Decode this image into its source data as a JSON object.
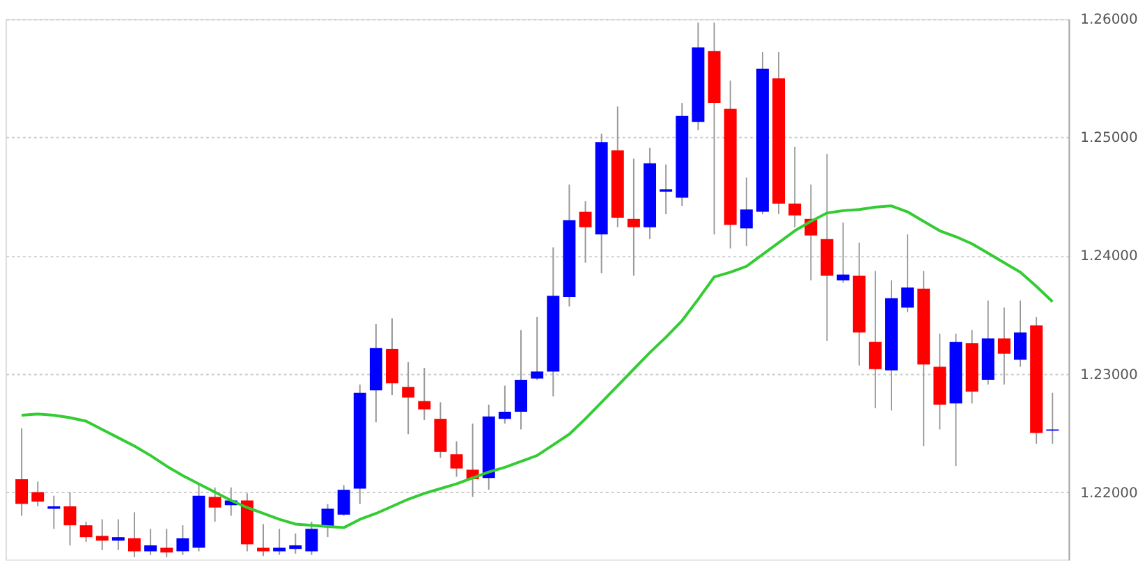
{
  "chart_data": {
    "type": "candlestick",
    "categories": [
      null,
      null,
      null,
      null,
      null,
      null,
      null,
      null,
      null,
      null,
      null,
      null,
      null,
      null,
      null,
      null,
      null,
      null,
      null,
      null,
      null,
      null,
      null,
      null,
      null,
      null,
      null,
      null,
      null,
      null,
      null,
      null,
      null,
      null,
      null,
      null,
      null,
      null,
      null,
      null,
      null,
      null,
      null,
      null,
      null,
      null,
      null,
      null,
      null,
      null,
      null,
      null,
      null,
      null,
      null,
      null,
      null,
      null,
      null,
      null,
      null,
      null,
      null,
      null,
      null
    ],
    "ohlc": [
      [
        1.2211,
        1.2254,
        1.218,
        1.219
      ],
      [
        1.22,
        1.2209,
        1.2188,
        1.2192
      ],
      [
        1.2186,
        1.2197,
        1.2169,
        1.2188
      ],
      [
        1.2188,
        1.22,
        1.2155,
        1.2172
      ],
      [
        1.2172,
        1.2175,
        1.2158,
        1.2162
      ],
      [
        1.2163,
        1.2177,
        1.2151,
        1.2159
      ],
      [
        1.2159,
        1.2177,
        1.2151,
        1.2162
      ],
      [
        1.2161,
        1.2183,
        1.2145,
        1.215
      ],
      [
        1.215,
        1.2169,
        1.2147,
        1.2155
      ],
      [
        1.2153,
        1.2169,
        1.2145,
        1.2149
      ],
      [
        1.215,
        1.2172,
        1.2147,
        1.2161
      ],
      [
        1.2153,
        1.2208,
        1.215,
        1.2197
      ],
      [
        1.2196,
        1.2204,
        1.2175,
        1.2187
      ],
      [
        1.2189,
        1.2204,
        1.218,
        1.2193
      ],
      [
        1.2193,
        1.2199,
        1.215,
        1.2156
      ],
      [
        1.2153,
        1.2173,
        1.2146,
        1.215
      ],
      [
        1.215,
        1.2169,
        1.2147,
        1.2153
      ],
      [
        1.2152,
        1.2165,
        1.2148,
        1.2155
      ],
      [
        1.215,
        1.2175,
        1.2147,
        1.2169
      ],
      [
        1.2171,
        1.219,
        1.2162,
        1.2186
      ],
      [
        1.2181,
        1.2206,
        1.218,
        1.2202
      ],
      [
        1.2203,
        1.2291,
        1.219,
        1.2284
      ],
      [
        1.2286,
        1.2342,
        1.2259,
        1.2322
      ],
      [
        1.2321,
        1.2347,
        1.2282,
        1.2292
      ],
      [
        1.2289,
        1.231,
        1.2249,
        1.228
      ],
      [
        1.2277,
        1.2305,
        1.2261,
        1.227
      ],
      [
        1.2262,
        1.2276,
        1.2229,
        1.2234
      ],
      [
        1.2232,
        1.2243,
        1.2213,
        1.222
      ],
      [
        1.2219,
        1.2258,
        1.2196,
        1.2211
      ],
      [
        1.2212,
        1.2274,
        1.2202,
        1.2264
      ],
      [
        1.2262,
        1.229,
        1.2258,
        1.2268
      ],
      [
        1.2268,
        1.2337,
        1.2253,
        1.2295
      ],
      [
        1.2296,
        1.2348,
        1.2295,
        1.2302
      ],
      [
        1.2302,
        1.2407,
        1.2281,
        1.2366
      ],
      [
        1.2365,
        1.246,
        1.2357,
        1.243
      ],
      [
        1.2437,
        1.2446,
        1.2394,
        1.2424
      ],
      [
        1.2418,
        1.2503,
        1.2385,
        1.2496
      ],
      [
        1.2489,
        1.2526,
        1.2424,
        1.2432
      ],
      [
        1.2431,
        1.2482,
        1.2383,
        1.2424
      ],
      [
        1.2424,
        1.2491,
        1.2414,
        1.2478
      ],
      [
        1.2454,
        1.2477,
        1.2435,
        1.2456
      ],
      [
        1.2449,
        1.2529,
        1.2442,
        1.2518
      ],
      [
        1.2513,
        1.2597,
        1.2506,
        1.2576
      ],
      [
        1.2573,
        1.2597,
        1.2418,
        1.2529
      ],
      [
        1.2524,
        1.2548,
        1.2406,
        1.2426
      ],
      [
        1.2423,
        1.2466,
        1.2408,
        1.2439
      ],
      [
        1.2437,
        1.2572,
        1.2435,
        1.2558
      ],
      [
        1.255,
        1.2572,
        1.2435,
        1.2444
      ],
      [
        1.2444,
        1.2492,
        1.2424,
        1.2434
      ],
      [
        1.2431,
        1.246,
        1.2379,
        1.2417
      ],
      [
        1.2414,
        1.2486,
        1.2328,
        1.2383
      ],
      [
        1.2379,
        1.2428,
        1.2377,
        1.2384
      ],
      [
        1.2383,
        1.2411,
        1.2307,
        1.2335
      ],
      [
        1.2327,
        1.2387,
        1.2271,
        1.2304
      ],
      [
        1.2303,
        1.2379,
        1.2269,
        1.2364
      ],
      [
        1.2356,
        1.2418,
        1.2352,
        1.2373
      ],
      [
        1.2372,
        1.2387,
        1.2239,
        1.2308
      ],
      [
        1.2306,
        1.2334,
        1.2253,
        1.2274
      ],
      [
        1.2275,
        1.2334,
        1.2222,
        1.2327
      ],
      [
        1.2326,
        1.2337,
        1.2275,
        1.2285
      ],
      [
        1.2295,
        1.2362,
        1.2291,
        1.233
      ],
      [
        1.233,
        1.2356,
        1.2291,
        1.2317
      ],
      [
        1.2312,
        1.2362,
        1.2306,
        1.2335
      ],
      [
        1.2341,
        1.2348,
        1.2241,
        1.225
      ],
      [
        1.2252,
        1.2284,
        1.2241,
        1.2253
      ]
    ],
    "colors": [
      "#ff0000",
      "#ff0000",
      "#0000ff",
      "#ff0000",
      "#ff0000",
      "#ff0000",
      "#0000ff",
      "#ff0000",
      "#0000ff",
      "#ff0000",
      "#0000ff",
      "#0000ff",
      "#ff0000",
      "#0000ff",
      "#ff0000",
      "#ff0000",
      "#0000ff",
      "#0000ff",
      "#0000ff",
      "#0000ff",
      "#0000ff",
      "#0000ff",
      "#0000ff",
      "#ff0000",
      "#ff0000",
      "#ff0000",
      "#ff0000",
      "#ff0000",
      "#ff0000",
      "#0000ff",
      "#0000ff",
      "#0000ff",
      "#0000ff",
      "#0000ff",
      "#0000ff",
      "#ff0000",
      "#0000ff",
      "#ff0000",
      "#ff0000",
      "#0000ff",
      "#0000ff",
      "#0000ff",
      "#0000ff",
      "#ff0000",
      "#ff0000",
      "#0000ff",
      "#0000ff",
      "#ff0000",
      "#ff0000",
      "#ff0000",
      "#ff0000",
      "#0000ff",
      "#ff0000",
      "#ff0000",
      "#0000ff",
      "#0000ff",
      "#ff0000",
      "#ff0000",
      "#0000ff",
      "#ff0000",
      "#0000ff",
      "#ff0000",
      "#0000ff",
      "#ff0000",
      "#0000ff"
    ],
    "series": [
      {
        "type": "line",
        "color": "#33cc33",
        "values": [
          1.2265,
          1.2266,
          1.2265,
          1.2263,
          1.226,
          1.2253,
          1.2246,
          1.2239,
          1.2231,
          1.2222,
          1.2214,
          1.2207,
          1.22,
          1.2193,
          1.2187,
          1.2182,
          1.2177,
          1.2173,
          1.2172,
          1.2171,
          1.217,
          1.2177,
          1.2182,
          1.2188,
          1.2194,
          1.2199,
          1.2203,
          1.2207,
          1.2212,
          1.2217,
          1.2221,
          1.2226,
          1.2231,
          1.224,
          1.2249,
          1.2262,
          1.2276,
          1.229,
          1.2304,
          1.2318,
          1.2331,
          1.2345,
          1.2363,
          1.2382,
          1.2386,
          1.2391,
          1.2401,
          1.2411,
          1.2421,
          1.2429,
          1.2436,
          1.2438,
          1.2439,
          1.2441,
          1.2442,
          1.2437,
          1.2429,
          1.2421,
          1.2416,
          1.241,
          1.2402,
          1.2394,
          1.2386,
          1.2374,
          1.2361
        ]
      }
    ],
    "ylim": [
      1.2143,
      1.26
    ],
    "yticks": [
      {
        "value": 1.22,
        "label": "1.22000"
      },
      {
        "value": 1.23,
        "label": "1.23000"
      },
      {
        "value": 1.24,
        "label": "1.24000"
      },
      {
        "value": 1.25,
        "label": "1.25000"
      },
      {
        "value": 1.26,
        "label": "1.26000"
      }
    ],
    "grid": "y",
    "tick_labels": "y"
  }
}
